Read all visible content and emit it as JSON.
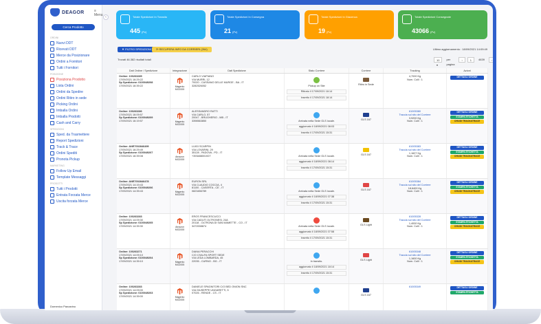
{
  "brand": {
    "name": "DEAGOR"
  },
  "sidebar": {
    "search_button": "Cerca Prodotto",
    "menu_label": "≡ Menu",
    "sections": [
      {
        "title": "Ordini",
        "items": [
          {
            "label": "Nuovi DDT",
            "active": false
          },
          {
            "label": "Ricevuti DDT",
            "active": false
          },
          {
            "label": "Merce da Posizionare",
            "active": false
          }
        ]
      },
      {
        "title": "",
        "items": [
          {
            "label": "Ordini a Fornitori",
            "active": false
          },
          {
            "label": "Tutti i Fornitori",
            "active": false
          }
        ]
      },
      {
        "title": "Posizione",
        "items": [
          {
            "label": "Posiziona Prodotto",
            "active": true
          }
        ]
      },
      {
        "title": "",
        "items": [
          {
            "label": "Lista Ordini",
            "active": false
          }
        ]
      },
      {
        "title": "",
        "items": [
          {
            "label": "Ordini da Spedire",
            "active": false
          },
          {
            "label": "Ordini Ritiro in sede",
            "active": false
          }
        ]
      },
      {
        "title": "",
        "items": [
          {
            "label": "Picking Ordini",
            "active": false
          },
          {
            "label": "Imballa Ordini",
            "active": false
          },
          {
            "label": "Imballa Prodotti",
            "active": false
          },
          {
            "label": "Cash and Carry",
            "active": false
          }
        ]
      },
      {
        "title": "Spedizioni",
        "items": [
          {
            "label": "Sped. da Trasmettere",
            "active": false
          },
          {
            "label": "Report Spedizioni",
            "active": false
          },
          {
            "label": "Track & Trace",
            "active": false
          },
          {
            "label": "Ordini Spediti",
            "active": false
          },
          {
            "label": "Pronota Pickup",
            "active": false
          }
        ]
      },
      {
        "title": "Marketing",
        "items": [
          {
            "label": "Follow Up Email",
            "active": false
          },
          {
            "label": "Template Messaggi",
            "active": false
          }
        ]
      },
      {
        "title": "Prodotti",
        "items": [
          {
            "label": "Tutti i Prodotti",
            "active": false
          },
          {
            "label": "Entrata Forzata Merce",
            "active": false
          },
          {
            "label": "Uscita forzata Merce",
            "active": false
          }
        ]
      }
    ],
    "user_name": "Domenico Panzarino"
  },
  "cards": [
    {
      "title": "Totale Spedizioni In Transito",
      "value": "445",
      "unit": "(Pz)",
      "color": "#29b6f6",
      "icon": "truck-icon"
    },
    {
      "title": "Totale Spedizioni In Consegna",
      "value": "21",
      "unit": "(Pz)",
      "color": "#1e88e5",
      "icon": "delivery-icon"
    },
    {
      "title": "Totale Spedizioni In Giacenza",
      "value": "19",
      "unit": "(Pz)",
      "color": "#ffa000",
      "icon": "question-icon"
    },
    {
      "title": "Totale Spedizioni Consegnate",
      "value": "43066",
      "unit": "(Pz)",
      "color": "#4caf50",
      "icon": "box-check-icon"
    }
  ],
  "toolbar": {
    "filter_button": "▼ FILTRO SPEDIZIONI",
    "refresh_button": "⟳ RECUPERA INFO DA CORRIERI (264)",
    "last_update": "Ultimo aggiornamento : 18/09/2021 14:09:49"
  },
  "results_found": "Trovati 46.382 risultati totali",
  "pager": {
    "per_page_label": "per pagina",
    "page": "1",
    "total_pages": "4639"
  },
  "table": {
    "headers": [
      "Dati Ordine / Spedizione",
      "Integrazione",
      "Dati Spedizione",
      "Stato Corriere",
      "Corriere",
      "Tracking",
      "Azioni"
    ],
    "rows": [
      {
        "ordine": "Ordine: 100263285",
        "data": "17/09/2021 16:29:22",
        "spedizione": "Sp Spedizione: 0100049208",
        "data2": "17/09/2021 16:39:22",
        "integ_name": "Magento",
        "integ_code": "MG2005",
        "addr1": "CARLO VIAPIANO",
        "addr2": "VIA MURRI, 12",
        "addr3": "70020 - CASSANO DELLE MURGE - BA - IT",
        "addr4": "3282526052",
        "status_color": "green",
        "status_text": "Pickup on Site",
        "status_line1": "Ritirato il 17/09/2021 18:14",
        "status_line2": "Inserito il 17/09/2021 18:14",
        "courier": "Ritiro in Sede",
        "courier_color": "#7b5b3a",
        "track_id": "",
        "track_link": "",
        "weight": "4,7000 Kg",
        "colli": "Num. Colli : 1",
        "actions": [
          "DETTAGLI ORDINE"
        ]
      },
      {
        "ordine": "Ordine: 100263286",
        "data": "17/09/2021 16:09:57",
        "spedizione": "Sp Spedizione: 0100049209",
        "data2": "17/09/2021 16:19:57",
        "integ_name": "Magento",
        "integ_code": "MG2005",
        "addr1": "ALESSANDRO RATTI",
        "addr2": "VIA CARLO, 57",
        "addr3": "20047 - BRUGHERIO - MB - IT",
        "addr4": "3398563850",
        "status_color": "blue",
        "status_text": "Arrivata nella Sede GLS locale.",
        "status_line1": "aggiornato il 18/09/2021 08:03",
        "status_line2": "Inserito il 17/09/2021 15:31",
        "courier": "GLS 167",
        "courier_color": "#1f3f8f",
        "track_id": "61005380",
        "track_link": "Traccia sul sito del Corriere",
        "weight": "3,9200 Kg",
        "colli": "Num. Colli : 1",
        "actions": [
          "DETTAGLI ORDINE",
          "STAMPA ETICHETTA",
          "CHIUDI TRACK&TRACE"
        ]
      },
      {
        "ordine": "Ordine: ANE7002846499",
        "data": "17/09/2021 16:29:49",
        "spedizione": "Sp Spedizione: 0100049207",
        "data2": "17/09/2021 16:39:08",
        "integ_name": "Amazon",
        "integ_code": "MG2005",
        "addr1": "LUIGI SCARPIN",
        "addr2": "VIA LOVARINI, 29",
        "addr3": "35128 - PADOVA - PD - IT",
        "addr4": "+393488001927",
        "status_color": "blue",
        "status_text": "Arrivata nella Sede GLS locale.",
        "status_line1": "aggiornato il 18/09/2021 08:14",
        "status_line2": "Inserito il 17/09/2021 15:31",
        "courier": "GLS 167",
        "courier_color": "#f2c200",
        "track_id": "61005383",
        "track_link": "Traccia sul sito del Corriere",
        "weight": "1,1627 Kg",
        "colli": "Num. Colli : 1",
        "actions": [
          "DETTAGLI ORDINE",
          "STAMPA ETICHETTA",
          "CHIUDI TRACK&TRACE"
        ]
      },
      {
        "ordine": "Ordine: ANE7002846478",
        "data": "17/09/2021 14:19:43",
        "spedizione": "Sp Spedizione: 0100049206",
        "data2": "17/09/2021 14:39:43",
        "integ_name": "Magento",
        "integ_code": "MG2005",
        "addr1": "EURON SRL",
        "addr2": "VIA CLAUDIO COCCIA, 4",
        "addr3": "81100 - CASERTA - CE - IT",
        "addr4": "0823456789",
        "status_color": "blue",
        "status_text": "Arrivata nella Sede GLS locale.",
        "status_line1": "aggiornato il 18/09/2021 07:38",
        "status_line2": "Inserito il 17/09/2021 15:31",
        "courier": "GLS 167",
        "courier_color": "#e04646",
        "track_id": "61005384",
        "track_link": "Traccia sul sito del Corriere",
        "weight": "18,6400 Kg",
        "colli": "Num. Colli : 1",
        "actions": [
          "DETTAGLI ORDINE",
          "STAMPA ETICHETTA",
          "CHIUDI TRACK&TRACE"
        ]
      },
      {
        "ordine": "Ordine: 100263283",
        "data": "17/09/2021 14:09:30",
        "spedizione": "Sp Spedizione: 0100049205",
        "data2": "17/09/2021 14:39:30",
        "integ_name": "Amazon",
        "integ_code": "MG2005",
        "addr1": "EROS FRANCESCUCCI",
        "addr2": "VIA CADUTI OLTRONESI, 24A",
        "addr3": "20118 - OLTRONA DI SAN MAMETTE - CO - IT",
        "addr4": "3472008874",
        "status_color": "red",
        "status_text": "Arrivata nella Sede GLS locale.",
        "status_line1": "aggiornato il 18/09/2021 07:58",
        "status_line2": "Inserito il 17/09/2021 15:31",
        "courier": "GLS Light",
        "courier_color": "#6b4a1f",
        "track_id": "61005328",
        "track_link": "Traccia sul sito del Corriere",
        "weight": "1,4000 Kg",
        "colli": "Num. Colli : 1",
        "actions": [
          "DETTAGLI ORDINE",
          "STAMPA ETICHETTA",
          "CHIUDI TRACK&TRACE"
        ]
      },
      {
        "ordine": "Ordine: 100263271",
        "data": "17/09/2021 14:09:10",
        "spedizione": "Sp Spedizione: 0100049204",
        "data2": "17/09/2021 14:39:10",
        "integ_name": "Magento",
        "integ_code": "MG2005",
        "addr1": "DIANA PERACCHI",
        "addr2": "C/O CSALFA SPORT SEDE",
        "addr3": "VIA LEDA LOMBARDA, 45",
        "addr4": "22035 - CURNO - BG - IT",
        "status_color": "blue",
        "status_text": "In transito.",
        "status_line1": "aggiornato il 18/09/2021 18:14",
        "status_line2": "Inserito il 17/09/2021 15:31",
        "courier": "GLS Light",
        "courier_color": "#e04646",
        "track_id": "61005348",
        "track_link": "Traccia sul sito del Corriere",
        "weight": "1,1600 Kg",
        "colli": "Num. Colli : 1",
        "actions": [
          "DETTAGLI ORDINE",
          "STAMPA ETICHETTA",
          "CHIUDI TRACK&TRACE"
        ]
      },
      {
        "ordine": "Ordine: 100263283",
        "data": "17/09/2021 14:09:00",
        "spedizione": "Sp Spedizione: 0100049203",
        "data2": "17/09/2021 14:39:00",
        "integ_name": "Magento",
        "integ_code": "MG2005",
        "addr1": "DANIELE SPAGNITORI C/O BED ONION SNC",
        "addr2": "VIA GIUSEPPE UNGARETTI, 5",
        "addr3": "07026 - RENDE - CS - IT",
        "addr4": "",
        "status_color": "blue",
        "status_text": "",
        "status_line1": "",
        "status_line2": "",
        "courier": "GLS 167",
        "courier_color": "#1f3f8f",
        "track_id": "61005349",
        "track_link": "",
        "weight": "",
        "colli": "",
        "actions": [
          "DETTAGLI ORDINE",
          "STAMPA ETICHETTA"
        ]
      }
    ]
  }
}
